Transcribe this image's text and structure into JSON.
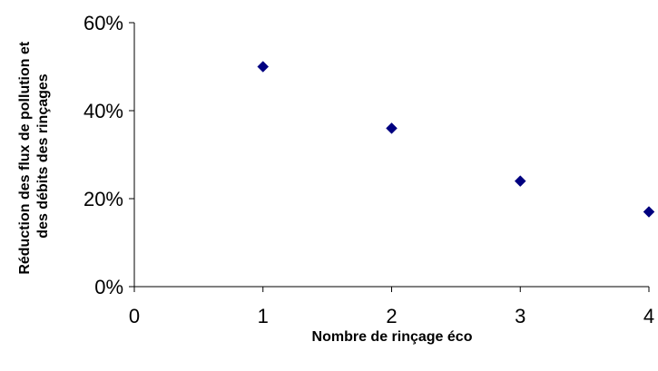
{
  "chart_data": {
    "type": "scatter",
    "title": "",
    "xlabel": "Nombre de rinçage éco",
    "ylabel": [
      "Réduction des flux de pollution et",
      "des débits des rinçages"
    ],
    "xlim": [
      0,
      4
    ],
    "ylim": [
      0,
      0.6
    ],
    "x_ticks": [
      0,
      1,
      2,
      3,
      4
    ],
    "x_tick_labels": [
      "0",
      "1",
      "2",
      "3",
      "4"
    ],
    "y_ticks": [
      0,
      0.2,
      0.4,
      0.6
    ],
    "y_tick_labels": [
      "0%",
      "20%",
      "40%",
      "60%"
    ],
    "grid": false,
    "legend": "none",
    "series": [
      {
        "x": [
          1,
          2,
          3,
          4
        ],
        "y": [
          0.5,
          0.36,
          0.24,
          0.17
        ],
        "marker": "diamond",
        "color": "#000080"
      }
    ]
  }
}
